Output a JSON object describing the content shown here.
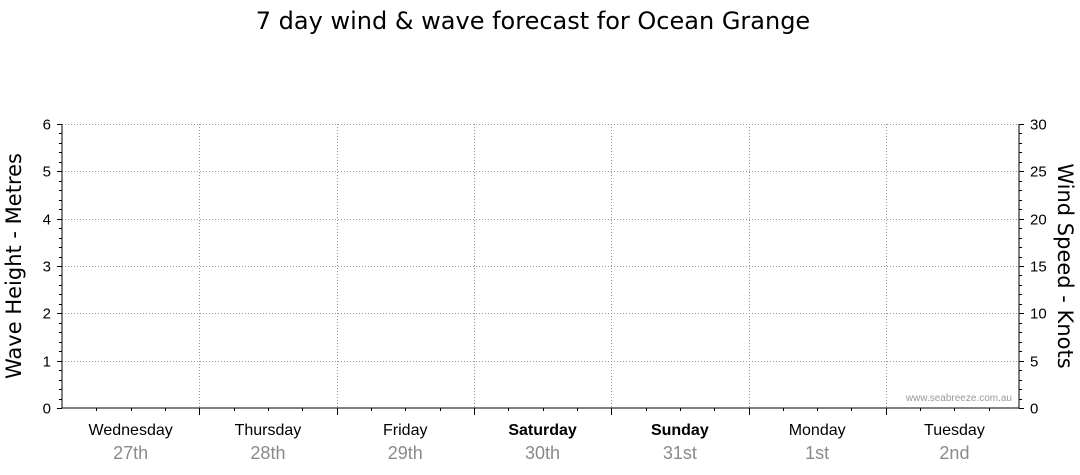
{
  "chart_data": {
    "type": "line",
    "title": "7 day wind & wave forecast for Ocean Grange",
    "y_left": {
      "label": "Wave Height - Metres",
      "ylim": [
        0,
        6
      ],
      "ticks": [
        0,
        1,
        2,
        3,
        4,
        5,
        6
      ]
    },
    "y_right": {
      "label": "Wind Speed - Knots",
      "ylim": [
        0,
        30
      ],
      "ticks": [
        0,
        5,
        10,
        15,
        20,
        25,
        30
      ]
    },
    "days": [
      {
        "name": "Wednesday",
        "date": "27th",
        "bold": false
      },
      {
        "name": "Thursday",
        "date": "28th",
        "bold": false
      },
      {
        "name": "Friday",
        "date": "29th",
        "bold": false
      },
      {
        "name": "Saturday",
        "date": "30th",
        "bold": true
      },
      {
        "name": "Sunday",
        "date": "31st",
        "bold": true
      },
      {
        "name": "Monday",
        "date": "1st",
        "bold": false
      },
      {
        "name": "Tuesday",
        "date": "2nd",
        "bold": false
      }
    ],
    "series": [],
    "grid": true,
    "watermark": "www.seabreeze.com.au"
  }
}
